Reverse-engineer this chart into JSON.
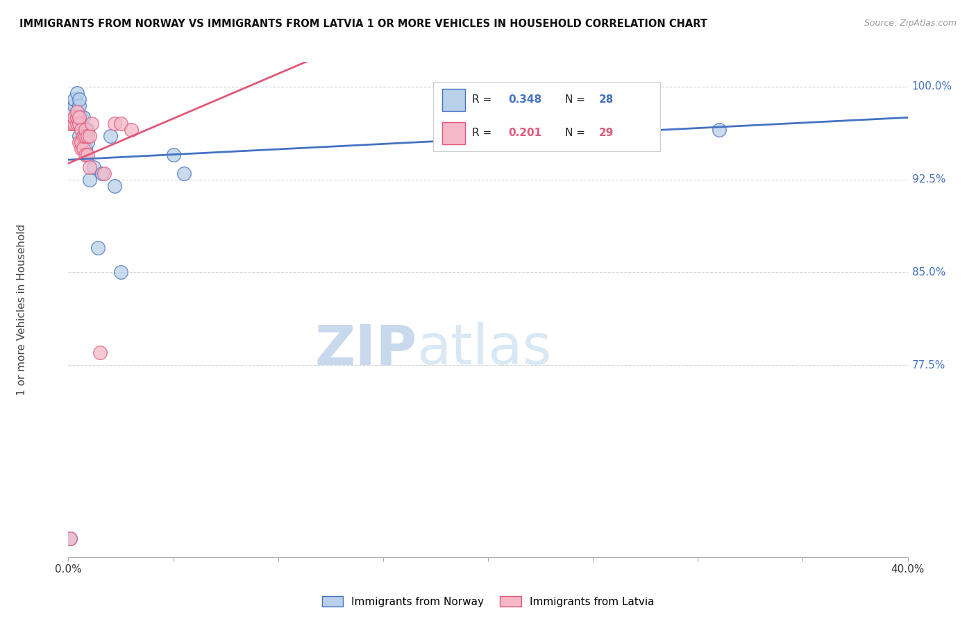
{
  "title": "IMMIGRANTS FROM NORWAY VS IMMIGRANTS FROM LATVIA 1 OR MORE VEHICLES IN HOUSEHOLD CORRELATION CHART",
  "source": "Source: ZipAtlas.com",
  "ylabel": "1 or more Vehicles in Household",
  "ylabel_right_ticks": [
    0.775,
    0.85,
    0.925,
    1.0
  ],
  "ylabel_right_labels": [
    "77.5%",
    "85.0%",
    "92.5%",
    "100.0%"
  ],
  "norway_R": 0.348,
  "norway_N": 28,
  "latvia_R": 0.201,
  "latvia_N": 29,
  "norway_color": "#b8d0e8",
  "latvia_color": "#f4b8c8",
  "norway_line_color": "#4472c4",
  "latvia_line_color": "#e05878",
  "watermark_zip": "ZIP",
  "watermark_atlas": "atlas",
  "norway_x": [
    0.001,
    0.002,
    0.003,
    0.003,
    0.004,
    0.004,
    0.005,
    0.005,
    0.005,
    0.006,
    0.006,
    0.007,
    0.007,
    0.008,
    0.008,
    0.009,
    0.009,
    0.01,
    0.012,
    0.014,
    0.016,
    0.02,
    0.022,
    0.025,
    0.05,
    0.055,
    0.24,
    0.31
  ],
  "norway_y": [
    0.635,
    0.98,
    0.985,
    0.99,
    0.98,
    0.995,
    0.96,
    0.985,
    0.99,
    0.97,
    0.975,
    0.96,
    0.975,
    0.95,
    0.965,
    0.955,
    0.965,
    0.925,
    0.935,
    0.87,
    0.93,
    0.96,
    0.92,
    0.85,
    0.945,
    0.93,
    0.975,
    0.965
  ],
  "latvia_x": [
    0.001,
    0.001,
    0.002,
    0.003,
    0.003,
    0.004,
    0.004,
    0.004,
    0.005,
    0.005,
    0.005,
    0.006,
    0.006,
    0.006,
    0.007,
    0.007,
    0.008,
    0.008,
    0.008,
    0.009,
    0.009,
    0.01,
    0.01,
    0.011,
    0.015,
    0.017,
    0.022,
    0.025,
    0.03
  ],
  "latvia_y": [
    0.635,
    0.97,
    0.97,
    0.97,
    0.975,
    0.97,
    0.975,
    0.98,
    0.955,
    0.97,
    0.975,
    0.95,
    0.955,
    0.965,
    0.95,
    0.96,
    0.945,
    0.96,
    0.965,
    0.945,
    0.96,
    0.935,
    0.96,
    0.97,
    0.785,
    0.93,
    0.97,
    0.97,
    0.965
  ],
  "xlim": [
    0.0,
    0.4
  ],
  "ylim": [
    0.62,
    1.02
  ],
  "background_color": "#ffffff",
  "grid_color": "#cccccc",
  "xtick_positions": [
    0.0,
    0.05,
    0.1,
    0.15,
    0.2,
    0.25,
    0.3,
    0.35,
    0.4
  ]
}
